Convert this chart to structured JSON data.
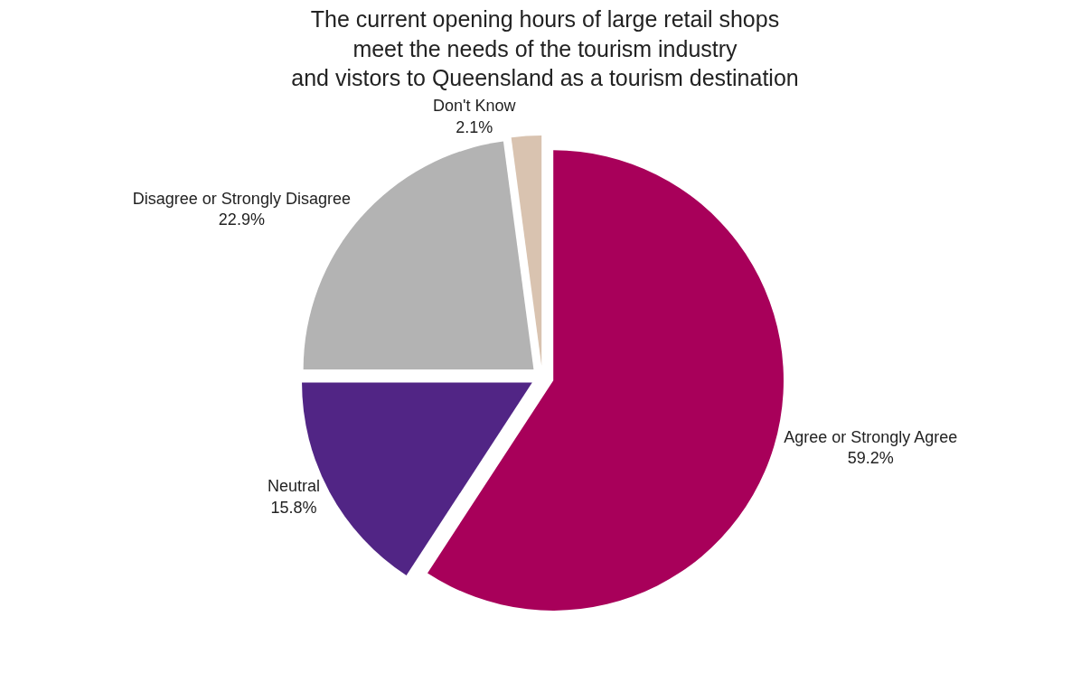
{
  "chart_data": {
    "type": "pie",
    "title": "The current opening hours of large retail shops\nmeet the needs of the tourism industry\nand vistors to Queensland as a tourism destination",
    "categories": [
      "Agree or Strongly Agree",
      "Neutral",
      "Disagree or Strongly Disagree",
      "Don't Know"
    ],
    "values": [
      59.2,
      15.8,
      22.9,
      2.1
    ],
    "value_labels": [
      "59.2%",
      "15.8%",
      "22.9%",
      "2.1%"
    ],
    "colors": [
      "#a8005a",
      "#512585",
      "#b3b3b3",
      "#d9c3b0"
    ],
    "legend": false
  }
}
